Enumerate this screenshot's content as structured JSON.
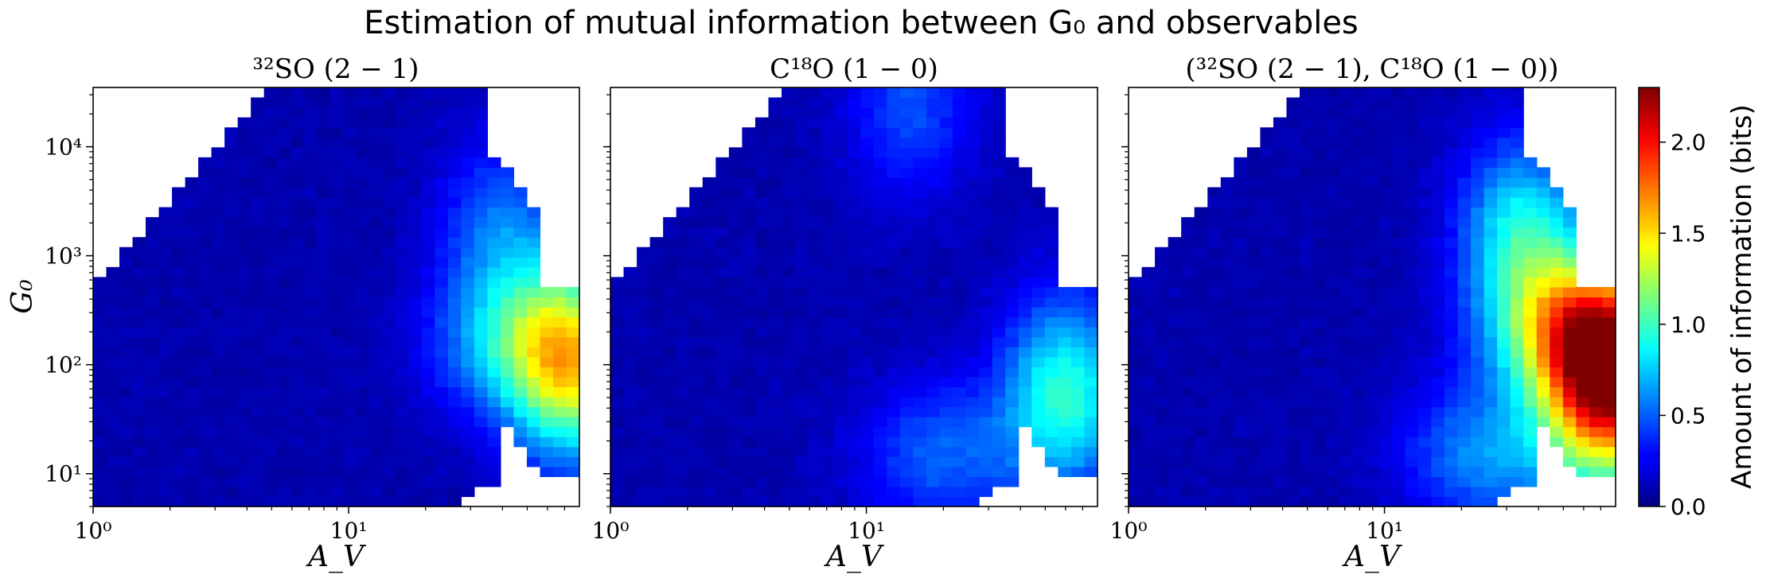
{
  "figure": {
    "title": "Estimation of mutual information between G₀ and observables"
  },
  "colorbar": {
    "label": "Amount of information (bits)",
    "vmin": 0.0,
    "vmax": 2.3,
    "ticks": [
      "0.0",
      "0.5",
      "1.0",
      "1.5",
      "2.0"
    ],
    "colormap": "jet"
  },
  "chart_data": [
    {
      "type": "heatmap",
      "title": "³²SO (2 − 1)",
      "xlabel": "A_V",
      "ylabel": "G₀",
      "xscale": "log",
      "yscale": "log",
      "xlim": [
        1,
        80
      ],
      "ylim": [
        5,
        35000
      ],
      "xticks": [
        "10⁰",
        "10¹"
      ],
      "yticks": [
        "10¹",
        "10²",
        "10³",
        "10⁴"
      ],
      "profile": {
        "hotspots": [
          {
            "Av": 75,
            "G0": 100,
            "value": 1.2
          },
          {
            "Av": 45,
            "G0": 150,
            "value": 0.55
          },
          {
            "Av": 40,
            "G0": 1500,
            "value": 0.45
          }
        ]
      }
    },
    {
      "type": "heatmap",
      "title": "C¹⁸O (1 − 0)",
      "xlabel": "A_V",
      "xscale": "log",
      "yscale": "log",
      "xlim": [
        1,
        80
      ],
      "ylim": [
        5,
        35000
      ],
      "xticks": [
        "10⁰",
        "10¹"
      ],
      "profile": {
        "hotspots": [
          {
            "Av": 60,
            "G0": 55,
            "value": 0.85
          },
          {
            "Av": 20,
            "G0": 15,
            "value": 0.4
          },
          {
            "Av": 15,
            "G0": 25000,
            "value": 0.35
          }
        ]
      }
    },
    {
      "type": "heatmap",
      "title": "(³²SO (2 − 1), C¹⁸O (1 − 0))",
      "xlabel": "A_V",
      "xscale": "log",
      "yscale": "log",
      "xlim": [
        1,
        80
      ],
      "ylim": [
        5,
        35000
      ],
      "xticks": [
        "10⁰",
        "10¹"
      ],
      "profile": {
        "hotspots": [
          {
            "Av": 75,
            "G0": 60,
            "value": 1.9
          },
          {
            "Av": 60,
            "G0": 200,
            "value": 1.2
          },
          {
            "Av": 35,
            "G0": 1500,
            "value": 0.8
          },
          {
            "Av": 25,
            "G0": 15,
            "value": 0.5
          }
        ]
      }
    }
  ]
}
